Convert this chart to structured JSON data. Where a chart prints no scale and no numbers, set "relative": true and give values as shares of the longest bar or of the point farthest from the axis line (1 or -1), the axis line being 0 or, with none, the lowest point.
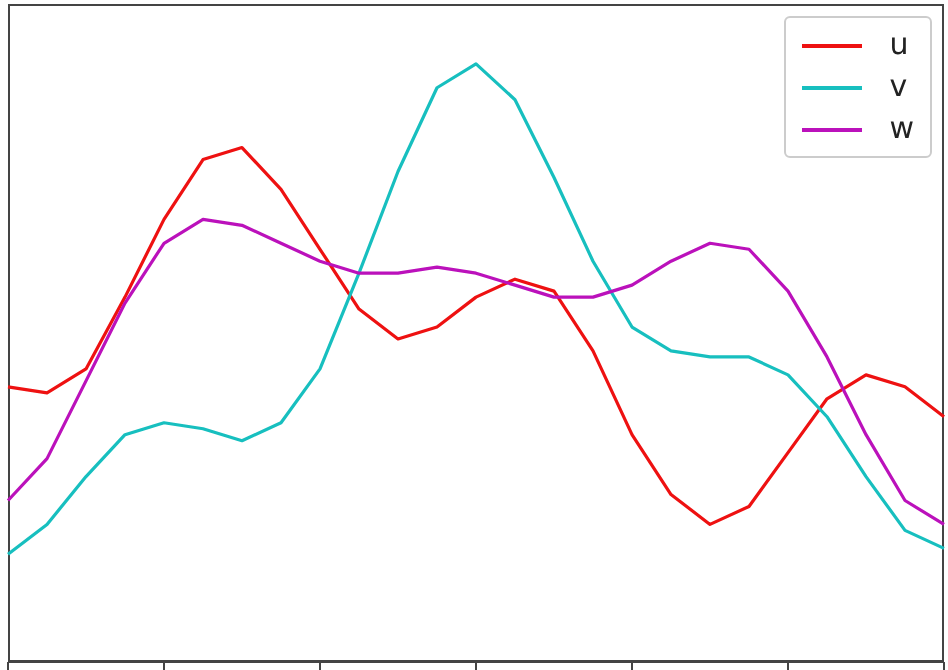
{
  "chart_data": {
    "type": "line",
    "relative": true,
    "legend": "top right",
    "marker": "none",
    "line_style": "solid",
    "categories": [
      null,
      null,
      null,
      null,
      null,
      null,
      null,
      null,
      null,
      null,
      null,
      null,
      null,
      null,
      null,
      null,
      null,
      null,
      null,
      null,
      null,
      null,
      null,
      null,
      null
    ],
    "series": [
      {
        "name": "u",
        "color": "#ee1111",
        "values": [
          0.46,
          0.45,
          0.49,
          0.61,
          0.74,
          0.84,
          0.86,
          0.79,
          0.69,
          0.59,
          0.54,
          0.56,
          0.61,
          0.64,
          0.62,
          0.52,
          0.38,
          0.28,
          0.23,
          0.26,
          0.35,
          0.44,
          0.48,
          0.46,
          0.41
        ]
      },
      {
        "name": "v",
        "color": "#17bfbf",
        "values": [
          0.18,
          0.23,
          0.31,
          0.38,
          0.4,
          0.39,
          0.37,
          0.4,
          0.49,
          0.65,
          0.82,
          0.96,
          1,
          0.94,
          0.81,
          0.67,
          0.56,
          0.52,
          0.51,
          0.51,
          0.48,
          0.41,
          0.31,
          0.22,
          0.19
        ]
      },
      {
        "name": "w",
        "color": "#bb11bb",
        "values": [
          0.27,
          0.34,
          0.47,
          0.6,
          0.7,
          0.74,
          0.73,
          0.7,
          0.67,
          0.65,
          0.65,
          0.66,
          0.65,
          0.63,
          0.61,
          0.61,
          0.63,
          0.67,
          0.7,
          0.69,
          0.62,
          0.51,
          0.38,
          0.27,
          0.23
        ]
      }
    ]
  }
}
